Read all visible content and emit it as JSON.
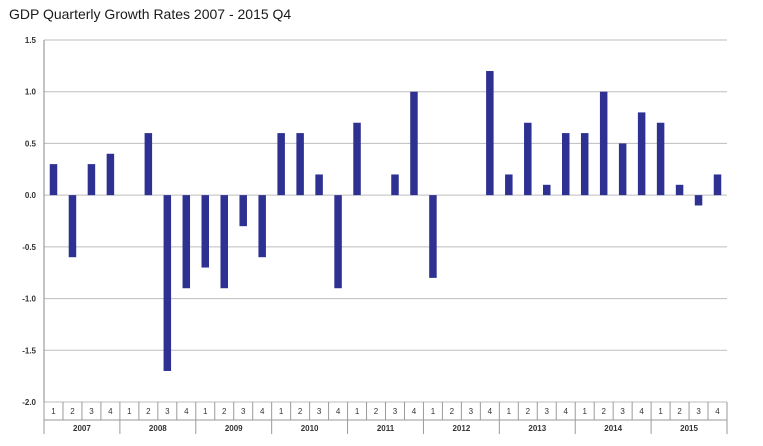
{
  "chart_data": {
    "type": "bar",
    "title": "GDP Quarterly Growth Rates 2007 - 2015 Q4",
    "xlabel": "",
    "ylabel": "",
    "ylim": [
      -2.0,
      1.5
    ],
    "yticks": [
      "1.5",
      "1.0",
      "0.5",
      "0.0",
      "-0.5",
      "-1.0",
      "-1.5",
      "-2.0"
    ],
    "ytick_values": [
      1.5,
      1.0,
      0.5,
      0.0,
      -0.5,
      -1.0,
      -1.5,
      -2.0
    ],
    "grid": true,
    "bar_color": "#2e3192",
    "years": [
      "2007",
      "2008",
      "2009",
      "2010",
      "2011",
      "2012",
      "2013",
      "2014",
      "2015"
    ],
    "quarters": [
      "1",
      "2",
      "3",
      "4"
    ],
    "values": [
      0.3,
      -0.6,
      0.3,
      0.4,
      0.0,
      0.6,
      -1.7,
      -0.9,
      -0.7,
      -0.9,
      -0.3,
      -0.6,
      0.6,
      0.6,
      0.2,
      -0.9,
      0.7,
      0.0,
      0.2,
      1.0,
      -0.8,
      0.0,
      0.0,
      1.2,
      0.2,
      0.7,
      0.1,
      0.6,
      0.6,
      1.0,
      0.5,
      0.8,
      0.7,
      0.1,
      -0.1,
      0.2
    ]
  }
}
